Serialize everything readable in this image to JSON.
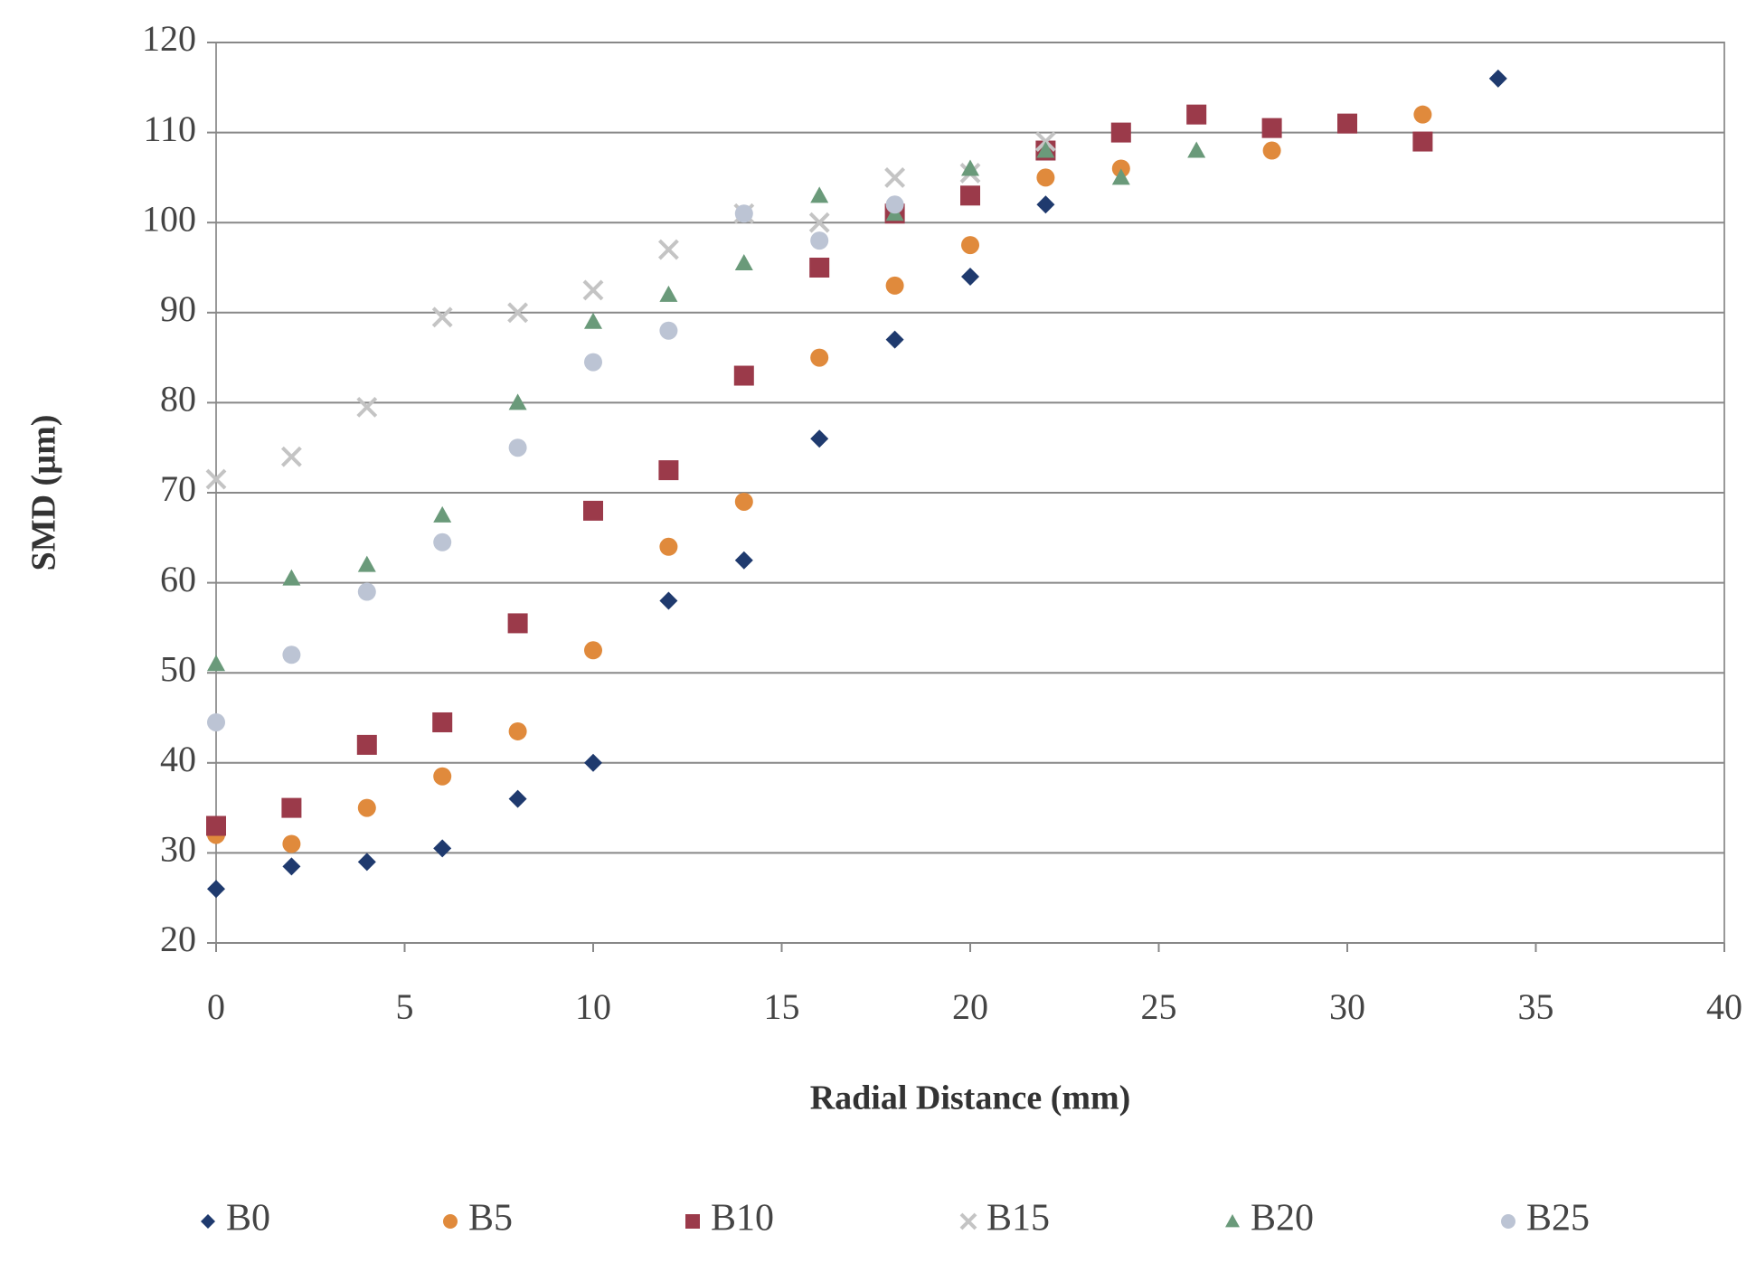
{
  "chart_data": {
    "type": "scatter",
    "x_label": "Radial Distance (mm)",
    "y_label": "SMD (µm)",
    "xlim": [
      0,
      40
    ],
    "xticks": [
      0,
      5,
      10,
      15,
      20,
      25,
      30,
      35,
      40
    ],
    "ylim": [
      20,
      120
    ],
    "yticks": [
      20,
      30,
      40,
      50,
      60,
      70,
      80,
      90,
      100,
      110,
      120
    ],
    "grid": true,
    "legend": "bottom",
    "series": [
      {
        "name": "B0",
        "color": "#1f3a6e",
        "marker": "diamond",
        "x": [
          0,
          2,
          4,
          6,
          8,
          10,
          12,
          14,
          16,
          18,
          20,
          22,
          34
        ],
        "values": [
          26,
          28.5,
          29,
          30.5,
          36,
          40,
          58,
          62.5,
          76,
          87,
          94,
          102,
          116
        ]
      },
      {
        "name": "B5",
        "color": "#e08a3c",
        "marker": "circle",
        "x": [
          0,
          2,
          4,
          6,
          8,
          10,
          12,
          14,
          16,
          18,
          20,
          22,
          24,
          28,
          32
        ],
        "values": [
          32,
          31,
          35,
          38.5,
          43.5,
          52.5,
          64,
          69,
          85,
          93,
          97.5,
          105,
          106,
          108,
          112
        ]
      },
      {
        "name": "B10",
        "color": "#9b3a4a",
        "marker": "square",
        "x": [
          0,
          2,
          4,
          6,
          8,
          10,
          12,
          14,
          16,
          18,
          20,
          22,
          24,
          26,
          28,
          30,
          32
        ],
        "values": [
          33,
          35,
          42,
          44.5,
          55.5,
          68,
          72.5,
          83,
          95,
          101,
          103,
          108,
          110,
          112,
          110.5,
          111,
          109
        ]
      },
      {
        "name": "B15",
        "color": "#c4c4c4",
        "marker": "x",
        "x": [
          0,
          2,
          4,
          6,
          8,
          10,
          12,
          14,
          16,
          18,
          20,
          22
        ],
        "values": [
          71.5,
          74,
          79.5,
          89.5,
          90,
          92.5,
          97,
          101,
          100,
          105,
          105.5,
          109
        ]
      },
      {
        "name": "B20",
        "color": "#6a9a7a",
        "marker": "triangle",
        "x": [
          0,
          2,
          4,
          6,
          8,
          10,
          12,
          14,
          16,
          18,
          20,
          22,
          24,
          26
        ],
        "values": [
          51,
          60.5,
          62,
          67.5,
          80,
          89,
          92,
          95.5,
          103,
          101,
          106,
          108,
          105,
          108
        ]
      },
      {
        "name": "B25",
        "color": "#bcc4d4",
        "marker": "circle",
        "x": [
          0,
          2,
          4,
          6,
          8,
          10,
          12,
          14,
          16,
          18
        ],
        "values": [
          44.5,
          52,
          59,
          64.5,
          75,
          84.5,
          88,
          101,
          98,
          102
        ]
      }
    ]
  }
}
